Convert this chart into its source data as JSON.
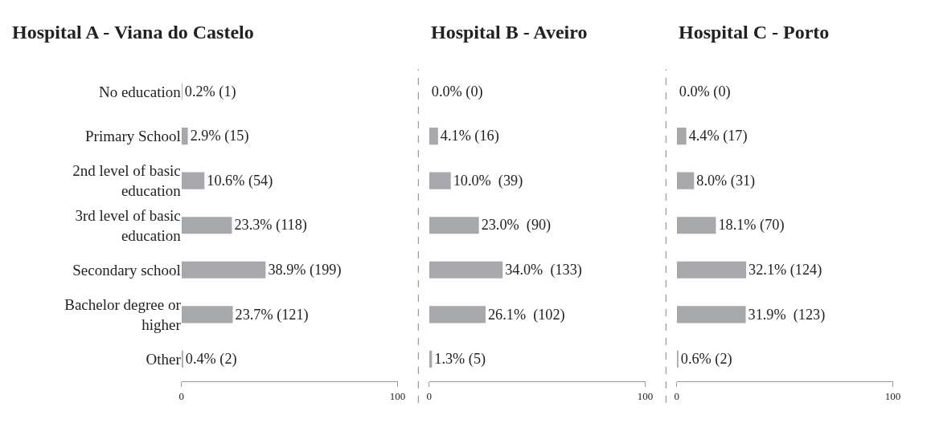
{
  "chart_data": [
    {
      "type": "bar",
      "orientation": "horizontal",
      "title": "Hospital A - Viana do Castelo",
      "categories": [
        "No education",
        "Primary School",
        "2nd level of basic education",
        "3rd level of basic education",
        "Secondary school",
        "Bachelor degree or higher",
        "Other"
      ],
      "values": [
        0.2,
        2.9,
        10.6,
        23.3,
        38.9,
        23.7,
        0.4
      ],
      "value_labels": [
        "0.2% (1)",
        "2.9% (15)",
        "10.6% (54)",
        "23.3% (118)",
        "38.9% (199)",
        "23.7% (121)",
        "0.4% (2)"
      ],
      "color": "#a6a8ab",
      "xlim": [
        0,
        100
      ],
      "xticks": [
        0,
        100
      ]
    },
    {
      "type": "bar",
      "orientation": "horizontal",
      "title": "Hospital B - Aveiro",
      "values": [
        0.0,
        4.1,
        10.0,
        23.0,
        34.0,
        26.1,
        1.3
      ],
      "value_labels": [
        "0.0% (0)",
        "4.1% (16)",
        "10.0%  (39)",
        "23.0%  (90)",
        "34.0%  (133)",
        "26.1%  (102)",
        "1.3% (5)"
      ],
      "color": "#a6a8ab",
      "xlim": [
        0,
        100
      ],
      "xticks": [
        0,
        100
      ],
      "tick_labels": "x"
    },
    {
      "type": "bar",
      "orientation": "horizontal",
      "title": "Hospital C - Porto",
      "values": [
        0.0,
        4.4,
        8.0,
        18.1,
        32.1,
        31.9,
        0.6
      ],
      "value_labels": [
        "0.0% (0)",
        "4.4% (17)",
        "8.0% (31)",
        "18.1% (70)",
        "32.1% (124)",
        "31.9%  (123)",
        "0.6% (2)"
      ],
      "color": "#a6a8ab",
      "xlim": [
        0,
        100
      ],
      "xticks": [
        0,
        100
      ],
      "tick_labels": "x"
    }
  ]
}
